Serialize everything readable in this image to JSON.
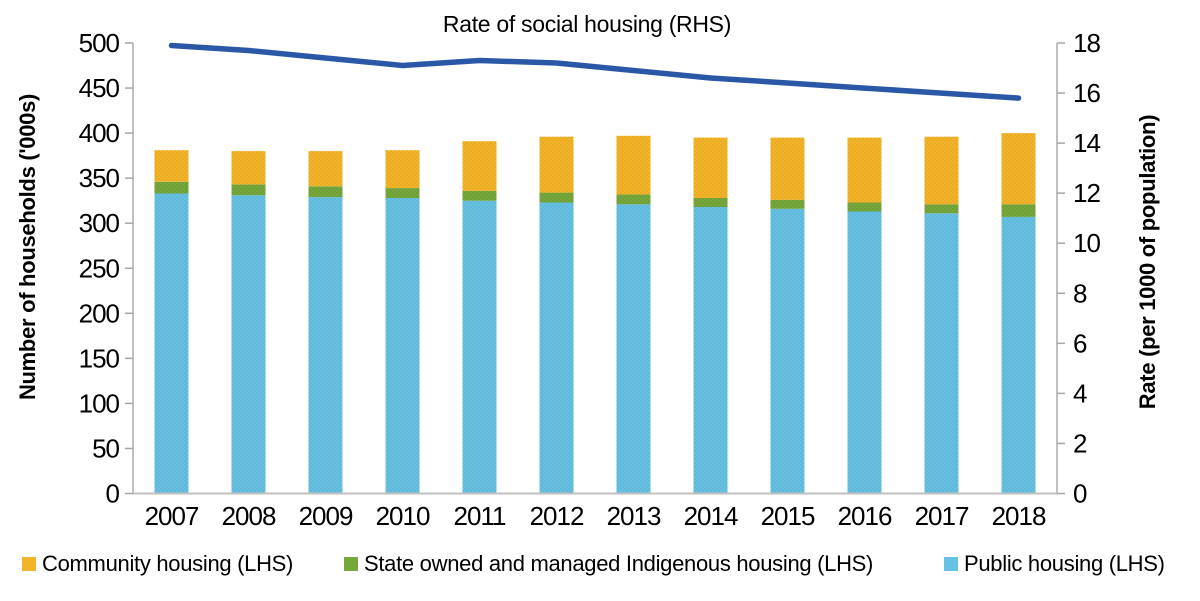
{
  "title": "Rate of social housing (RHS)",
  "left_axis": {
    "title": "Number of households ('000s)",
    "min": 0,
    "max": 500,
    "step": 50,
    "tick_labels": [
      "0",
      "50",
      "100",
      "150",
      "200",
      "250",
      "300",
      "350",
      "400",
      "450",
      "500"
    ]
  },
  "right_axis": {
    "title": "Rate (per 1000 of population)",
    "min": 0,
    "max": 18,
    "step": 2,
    "tick_labels": [
      "0",
      "2",
      "4",
      "6",
      "8",
      "10",
      "12",
      "14",
      "16",
      "18"
    ]
  },
  "x_axis": {
    "tick_labels": [
      "2007",
      "2008",
      "2009",
      "2010",
      "2011",
      "2012",
      "2013",
      "2014",
      "2015",
      "2016",
      "2017",
      "2018"
    ]
  },
  "legend": {
    "items": [
      {
        "label": "Community housing (LHS)",
        "color": "#F4B427"
      },
      {
        "label": "State owned and managed Indigenous housing (LHS)",
        "color": "#76A73B"
      },
      {
        "label": "Public housing (LHS)",
        "color": "#67C1E3"
      }
    ]
  },
  "colors": {
    "line": "#2A58A7",
    "axis_line": "#C0C0C0",
    "tick_mark": "#A6A6A6",
    "text": "#000000"
  },
  "chart_data": {
    "type": "bar",
    "subtype": "stacked bars (left axis) with line overlay (right axis)",
    "title": "Rate of social housing (RHS)",
    "xlabel": "",
    "ylabel_left": "Number of households ('000s)",
    "ylabel_right": "Rate (per 1000 of population)",
    "ylim_left": [
      0,
      500
    ],
    "ylim_right": [
      0,
      18
    ],
    "grid": false,
    "legend_position": "bottom",
    "categories": [
      "2007",
      "2008",
      "2009",
      "2010",
      "2011",
      "2012",
      "2013",
      "2014",
      "2015",
      "2016",
      "2017",
      "2018"
    ],
    "stack_order_bottom_to_top": [
      "Public housing (LHS)",
      "State owned and managed Indigenous housing (LHS)",
      "Community housing (LHS)"
    ],
    "series": [
      {
        "name": "Public housing (LHS)",
        "type": "bar",
        "axis": "left",
        "color": "#67C1E3",
        "values": [
          333,
          331,
          329,
          328,
          325,
          323,
          321,
          318,
          316,
          313,
          311,
          307
        ]
      },
      {
        "name": "State owned and managed Indigenous housing (LHS)",
        "type": "bar",
        "axis": "left",
        "color": "#76A73B",
        "values": [
          13,
          12,
          12,
          11,
          11,
          11,
          11,
          10,
          10,
          10,
          10,
          14
        ]
      },
      {
        "name": "Community housing (LHS)",
        "type": "bar",
        "axis": "left",
        "color": "#F4B427",
        "values": [
          35,
          37,
          39,
          42,
          55,
          62,
          65,
          67,
          69,
          72,
          75,
          79
        ]
      },
      {
        "name": "Rate of social housing (RHS)",
        "type": "line",
        "axis": "right",
        "color": "#2A58A7",
        "values": [
          17.9,
          17.7,
          17.4,
          17.1,
          17.3,
          17.2,
          16.9,
          16.6,
          16.4,
          16.2,
          16.0,
          15.8
        ]
      }
    ]
  }
}
